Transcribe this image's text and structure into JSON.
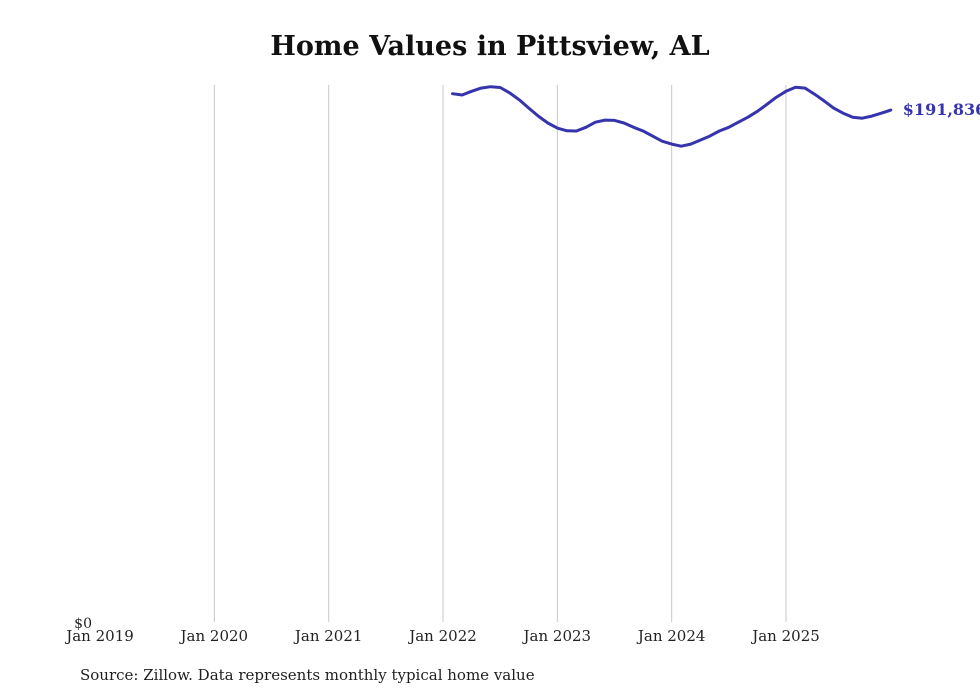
{
  "title": "Home Values in Pittsview, AL",
  "source_note": "Source: Zillow. Data represents monthly typical home value",
  "end_label": "$191,836",
  "y_axis": {
    "zero_label": "$0"
  },
  "colors": {
    "line": "#3534ac",
    "grid": "#c9c9c9",
    "text": "#222222"
  },
  "chart_data": {
    "type": "line",
    "title": "Home Values in Pittsview, AL",
    "xlabel": "",
    "ylabel": "",
    "ylim": [
      0,
      205000
    ],
    "grid": "vertical-only",
    "legend": "none",
    "x_ticks": [
      "Jan 2019",
      "Jan 2020",
      "Jan 2021",
      "Jan 2022",
      "Jan 2023",
      "Jan 2024",
      "Jan 2025"
    ],
    "end_value": 191836,
    "series": [
      {
        "name": "Typical home value",
        "x": [
          "2022-02",
          "2022-03",
          "2022-04",
          "2022-05",
          "2022-06",
          "2022-07",
          "2022-08",
          "2022-09",
          "2022-10",
          "2022-11",
          "2022-12",
          "2023-01",
          "2023-02",
          "2023-03",
          "2023-04",
          "2023-05",
          "2023-06",
          "2023-07",
          "2023-08",
          "2023-09",
          "2023-10",
          "2023-11",
          "2023-12",
          "2024-01",
          "2024-02",
          "2024-03",
          "2024-04",
          "2024-05",
          "2024-06",
          "2024-07",
          "2024-08",
          "2024-09",
          "2024-10",
          "2024-11",
          "2024-12",
          "2025-01",
          "2025-02",
          "2025-03",
          "2025-04",
          "2025-05",
          "2025-06",
          "2025-07",
          "2025-08",
          "2025-09",
          "2025-10",
          "2025-11",
          "2025-12"
        ],
        "values": [
          198000,
          197500,
          198900,
          200100,
          200600,
          200300,
          198300,
          195700,
          192600,
          189600,
          187000,
          185100,
          184100,
          184000,
          185400,
          187300,
          188100,
          188000,
          187000,
          185400,
          184000,
          182100,
          180200,
          179100,
          178300,
          179100,
          180600,
          182100,
          184000,
          185400,
          187300,
          189200,
          191400,
          194000,
          196700,
          198900,
          200400,
          200100,
          197800,
          195300,
          192600,
          190700,
          189200,
          188800,
          189600,
          190700,
          191836
        ]
      }
    ]
  }
}
